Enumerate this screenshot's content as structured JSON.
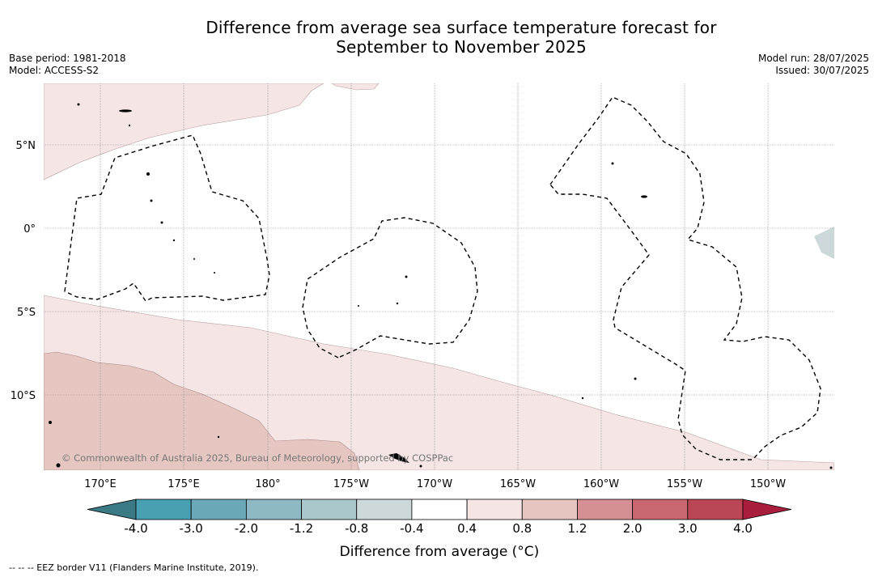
{
  "title": {
    "line1": "Difference from average sea surface temperature forecast for",
    "line2": "September to November 2025"
  },
  "meta": {
    "base_period": "Base period: 1981-2018",
    "model": "Model: ACCESS-S2",
    "model_run": "Model run: 28/07/2025",
    "issued": "Issued: 30/07/2025"
  },
  "map": {
    "lon_labels": [
      "170°E",
      "175°E",
      "180°",
      "175°W",
      "170°W",
      "165°W",
      "160°W",
      "155°W",
      "150°W"
    ],
    "lat_labels": [
      "5°N",
      "0°",
      "5°S",
      "10°S"
    ],
    "copyright": "© Commonwealth of Australia 2025, Bureau of Meteorology, supported by COSPPac",
    "anomaly_bands": [
      {
        "range": "0.4 to 0.8",
        "region": "northwest of the domain"
      },
      {
        "range": "0.4 to 0.8",
        "region": "southern half of the domain"
      },
      {
        "range": "0.8 to 1.2",
        "region": "southwest corner of the domain"
      },
      {
        "range": "-0.8 to -0.4",
        "region": "far eastern edge near the equator"
      }
    ]
  },
  "legend": {
    "title": "Difference from average (°C)",
    "tick_labels": [
      "-4.0",
      "-3.0",
      "-2.0",
      "-1.2",
      "-0.8",
      "-0.4",
      "0.4",
      "0.8",
      "1.2",
      "2.0",
      "3.0",
      "4.0"
    ],
    "colors": [
      "#3a7a85",
      "#4aa0b3",
      "#6ba9b8",
      "#8eb8c3",
      "#aac8cc",
      "#cdd8da",
      "#ffffff",
      "#f5e6e5",
      "#e6c6c1",
      "#d68f94",
      "#c86770",
      "#bb4656",
      "#a91d3d"
    ],
    "eez_note": "--  --  -- EEZ border V11 (Flanders Marine Institute, 2019)."
  }
}
